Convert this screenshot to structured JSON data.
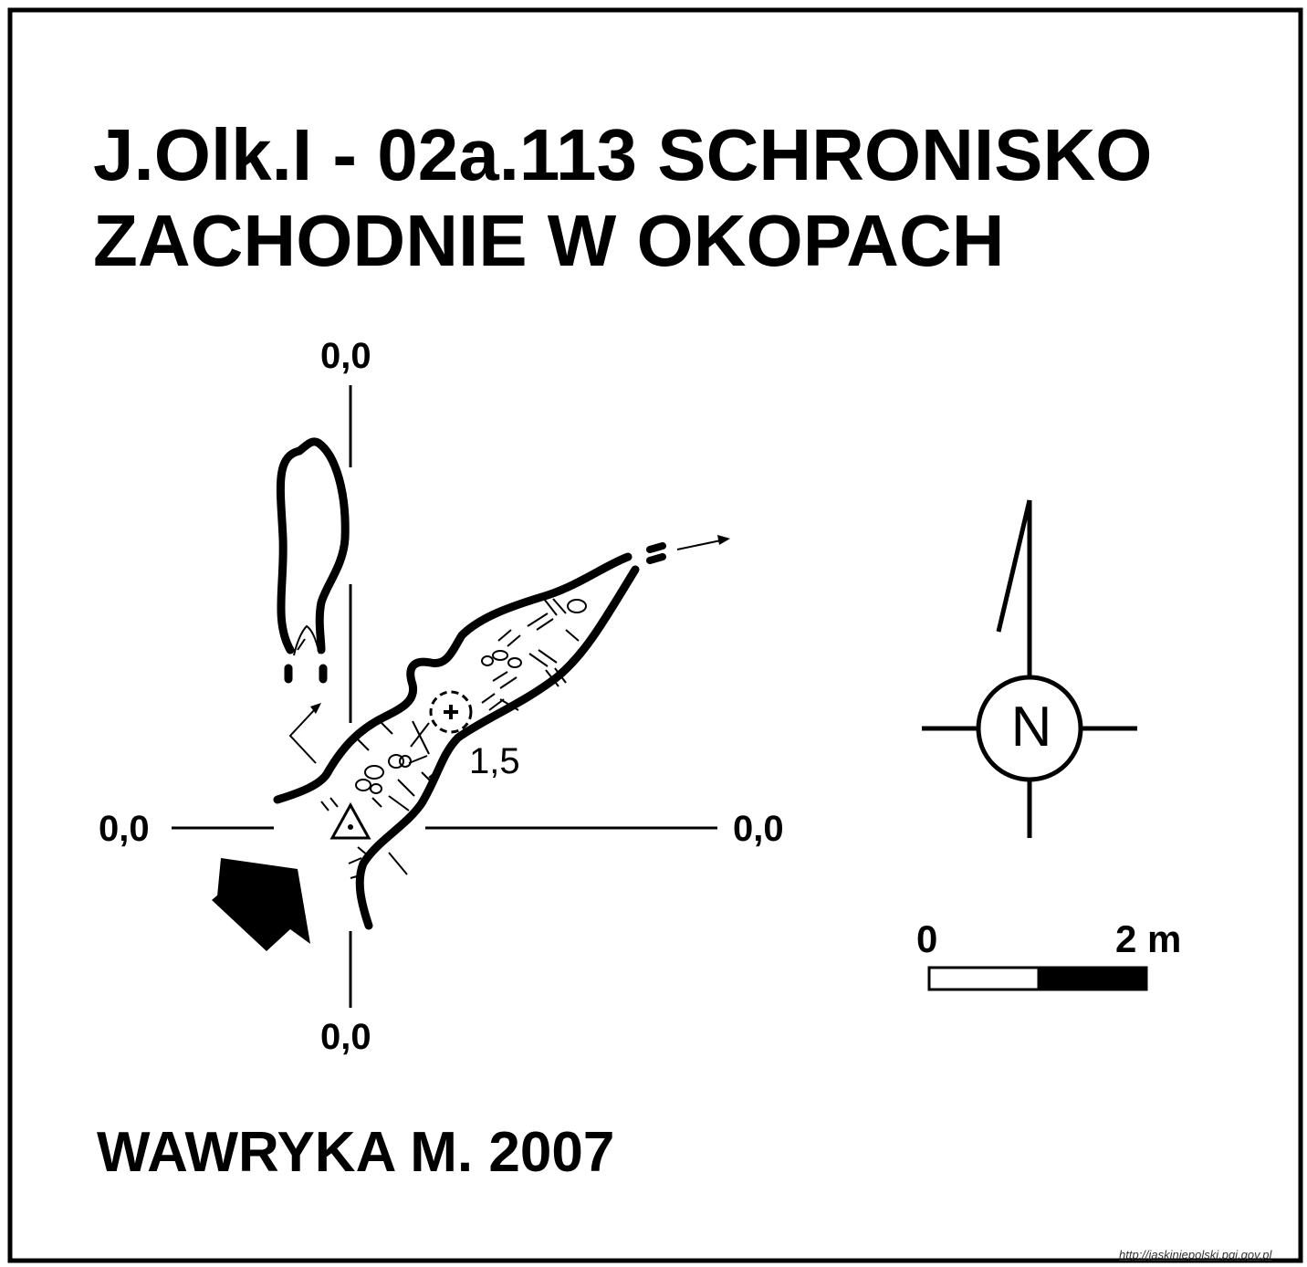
{
  "title": {
    "line1": "J.Olk.I - 02a.113  SCHRONISKO",
    "line2": "ZACHODNIE W OKOPACH"
  },
  "reference_labels": {
    "top": "0,0",
    "bottom": "0,0",
    "left": "0,0",
    "right": "0,0"
  },
  "depth_label": "1,5",
  "north_arrow": {
    "letter": "N",
    "icon": "compass-rose-icon"
  },
  "scale_bar": {
    "start": "0",
    "end": "2 m"
  },
  "author": "WAWRYKA M. 2007",
  "source_url": "http://jaskiniepolski.pgi.gov.pl",
  "colors": {
    "ink": "#000000",
    "paper": "#ffffff"
  }
}
